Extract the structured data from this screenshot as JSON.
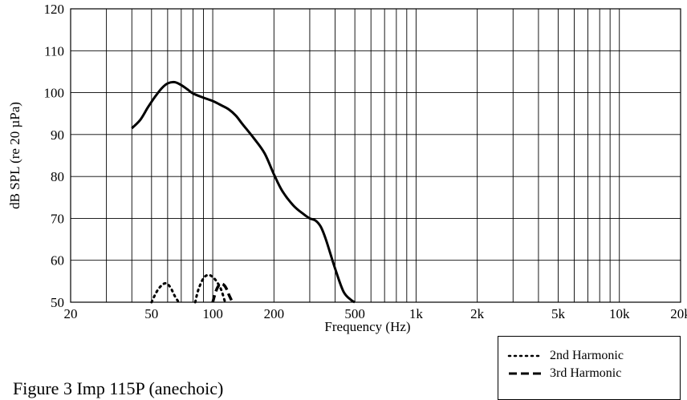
{
  "chart_data": {
    "type": "line",
    "xscale": "log",
    "xlabel": "Frequency (Hz)",
    "ylabel": "dB SPL (re 20 µPa)",
    "xlim": [
      20,
      20000
    ],
    "ylim": [
      50,
      120
    ],
    "grid": true,
    "legend_position": "bottom-right",
    "x_ticks": [
      20,
      50,
      100,
      200,
      500,
      1000,
      2000,
      5000,
      10000,
      20000
    ],
    "x_tick_labels": [
      "20",
      "50",
      "100",
      "200",
      "500",
      "1k",
      "2k",
      "5k",
      "10k",
      "20k"
    ],
    "y_ticks": [
      50,
      60,
      70,
      80,
      90,
      100,
      110,
      120
    ],
    "series": [
      {
        "style": "solid",
        "x": [
          40,
          44,
          48,
          52,
          56,
          60,
          65,
          70,
          75,
          80,
          90,
          100,
          110,
          120,
          130,
          140,
          160,
          180,
          200,
          220,
          250,
          280,
          300,
          320,
          340,
          360,
          400,
          440,
          480,
          500
        ],
        "y": [
          91.5,
          93.5,
          96.5,
          99,
          101,
          102.2,
          102.5,
          101.8,
          100.8,
          99.8,
          98.8,
          98,
          97,
          96,
          94.5,
          92.5,
          89,
          85.5,
          80.5,
          76.5,
          73,
          71,
          70,
          69.5,
          68,
          65,
          58,
          52.5,
          50.5,
          50
        ]
      },
      {
        "name": "2nd Harmonic",
        "style": "dotted",
        "x": [
          50,
          53,
          56,
          59,
          62,
          65,
          68
        ],
        "y": [
          50,
          52.5,
          54,
          54.5,
          53.5,
          51.5,
          50
        ]
      },
      {
        "name": "2nd Harmonic",
        "style": "dotted",
        "x": [
          82,
          85,
          90,
          95,
          100,
          105,
          110,
          115
        ],
        "y": [
          50,
          53,
          55.7,
          56.5,
          56,
          54.8,
          53,
          50
        ]
      },
      {
        "name": "3rd Harmonic",
        "style": "dashed",
        "x": [
          100,
          104,
          108,
          112,
          116,
          120,
          125
        ],
        "y": [
          50,
          52.8,
          54.2,
          54.3,
          53.5,
          51.8,
          50
        ]
      }
    ]
  },
  "legend": {
    "items": [
      {
        "label": "2nd Harmonic",
        "style": "dotted"
      },
      {
        "label": "3rd Harmonic",
        "style": "dashed"
      }
    ]
  },
  "caption": "Figure 3 Imp 115P (anechoic)"
}
